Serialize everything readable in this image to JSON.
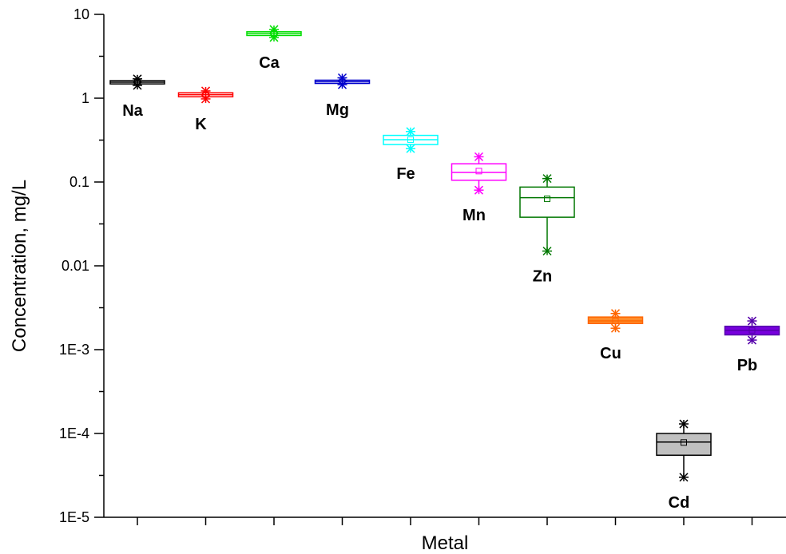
{
  "chart_data": {
    "type": "box",
    "xlabel": "Metal",
    "ylabel": "Concentration, mg/L",
    "yscale": "log",
    "ylim": [
      1e-05,
      10
    ],
    "yticks": [
      {
        "value": 10,
        "label": "10"
      },
      {
        "value": 1,
        "label": "1"
      },
      {
        "value": 0.1,
        "label": "0.1"
      },
      {
        "value": 0.01,
        "label": "0.01"
      },
      {
        "value": 0.001,
        "label": "1E-3"
      },
      {
        "value": 0.0001,
        "label": "1E-4"
      },
      {
        "value": 1e-05,
        "label": "1E-5"
      }
    ],
    "grid": false,
    "series": [
      {
        "name": "Na",
        "color": "#000000",
        "fill": "none",
        "q1": 1.48,
        "median": 1.55,
        "q3": 1.62,
        "mean": 1.55,
        "min": 1.42,
        "max": 1.7,
        "label_pos": "below"
      },
      {
        "name": "K",
        "color": "#ff0000",
        "fill": "none",
        "q1": 1.04,
        "median": 1.1,
        "q3": 1.16,
        "mean": 1.1,
        "min": 0.98,
        "max": 1.22,
        "label_pos": "below"
      },
      {
        "name": "Ca",
        "color": "#00dd00",
        "fill": "none",
        "q1": 5.6,
        "median": 5.9,
        "q3": 6.2,
        "mean": 5.9,
        "min": 5.3,
        "max": 6.6,
        "label_pos": "below"
      },
      {
        "name": "Mg",
        "color": "#0000cc",
        "fill": "none",
        "q1": 1.5,
        "median": 1.57,
        "q3": 1.64,
        "mean": 1.57,
        "min": 1.45,
        "max": 1.75,
        "label_pos": "below"
      },
      {
        "name": "Fe",
        "color": "#00ffff",
        "fill": "none",
        "q1": 0.28,
        "median": 0.32,
        "q3": 0.36,
        "mean": 0.32,
        "min": 0.25,
        "max": 0.4,
        "label_pos": "below"
      },
      {
        "name": "Mn",
        "color": "#ff00ff",
        "fill": "none",
        "q1": 0.105,
        "median": 0.13,
        "q3": 0.165,
        "mean": 0.135,
        "min": 0.08,
        "max": 0.2,
        "label_pos": "below"
      },
      {
        "name": "Zn",
        "color": "#007700",
        "fill": "none",
        "q1": 0.038,
        "median": 0.065,
        "q3": 0.087,
        "mean": 0.063,
        "min": 0.015,
        "max": 0.11,
        "label_pos": "below"
      },
      {
        "name": "Cu",
        "color": "#ff6600",
        "fill": "#ff8c2a",
        "q1": 0.00205,
        "median": 0.0022,
        "q3": 0.00245,
        "mean": 0.0022,
        "min": 0.0018,
        "max": 0.0027,
        "label_pos": "below"
      },
      {
        "name": "Cd",
        "color": "#000000",
        "fill": "#c0c0c0",
        "q1": 5.5e-05,
        "median": 7.9e-05,
        "q3": 0.0001,
        "mean": 7.8e-05,
        "min": 3e-05,
        "max": 0.00013,
        "label_pos": "below"
      },
      {
        "name": "Pb",
        "color": "#5500aa",
        "fill": "#7700dd",
        "q1": 0.0015,
        "median": 0.0017,
        "q3": 0.0019,
        "mean": 0.0017,
        "min": 0.0013,
        "max": 0.0022,
        "label_pos": "below"
      }
    ]
  }
}
